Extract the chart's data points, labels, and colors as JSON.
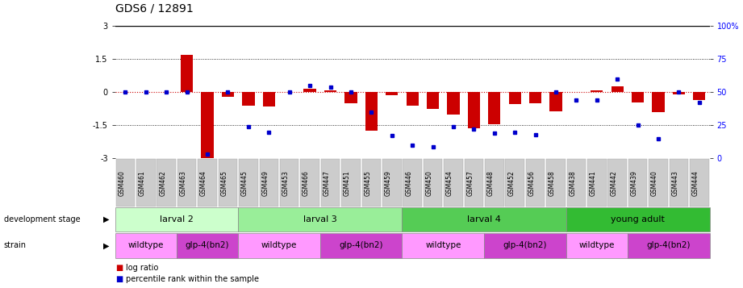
{
  "title": "GDS6 / 12891",
  "samples": [
    "GSM460",
    "GSM461",
    "GSM462",
    "GSM463",
    "GSM464",
    "GSM465",
    "GSM445",
    "GSM449",
    "GSM453",
    "GSM466",
    "GSM447",
    "GSM451",
    "GSM455",
    "GSM459",
    "GSM446",
    "GSM450",
    "GSM454",
    "GSM457",
    "GSM448",
    "GSM452",
    "GSM456",
    "GSM458",
    "GSM438",
    "GSM441",
    "GSM442",
    "GSM439",
    "GSM440",
    "GSM443",
    "GSM444"
  ],
  "log_ratio": [
    0.0,
    0.0,
    0.0,
    1.7,
    -3.0,
    -0.2,
    -0.6,
    -0.65,
    0.0,
    0.15,
    0.1,
    -0.5,
    -1.75,
    -0.15,
    -0.6,
    -0.75,
    -1.0,
    -1.65,
    -1.45,
    -0.55,
    -0.5,
    -0.85,
    0.0,
    0.1,
    0.25,
    -0.45,
    -0.9,
    -0.1,
    -0.35
  ],
  "percentile": [
    50,
    50,
    50,
    50,
    3,
    50,
    24,
    20,
    50,
    55,
    54,
    50,
    35,
    17,
    10,
    9,
    24,
    22,
    19,
    20,
    18,
    50,
    44,
    44,
    60,
    25,
    15,
    50,
    42
  ],
  "ylim": [
    -3,
    3
  ],
  "yticks_left": [
    -3,
    -1.5,
    0,
    1.5,
    3
  ],
  "yticks_right_pct": [
    0,
    25,
    50,
    75,
    100
  ],
  "yticks_right_labels": [
    "0",
    "25",
    "50",
    "75",
    "100%"
  ],
  "hline_zero": 0,
  "dotted_lines": [
    -1.5,
    1.5
  ],
  "dev_stages": [
    {
      "label": "larval 2",
      "start": 0,
      "end": 5,
      "color": "#ccffcc"
    },
    {
      "label": "larval 3",
      "start": 6,
      "end": 13,
      "color": "#99ee99"
    },
    {
      "label": "larval 4",
      "start": 14,
      "end": 21,
      "color": "#55cc55"
    },
    {
      "label": "young adult",
      "start": 22,
      "end": 28,
      "color": "#33bb33"
    }
  ],
  "strains": [
    {
      "label": "wildtype",
      "start": 0,
      "end": 2,
      "color": "#ff99ff"
    },
    {
      "label": "glp-4(bn2)",
      "start": 3,
      "end": 5,
      "color": "#cc44cc"
    },
    {
      "label": "wildtype",
      "start": 6,
      "end": 9,
      "color": "#ff99ff"
    },
    {
      "label": "glp-4(bn2)",
      "start": 10,
      "end": 13,
      "color": "#cc44cc"
    },
    {
      "label": "wildtype",
      "start": 14,
      "end": 17,
      "color": "#ff99ff"
    },
    {
      "label": "glp-4(bn2)",
      "start": 18,
      "end": 21,
      "color": "#cc44cc"
    },
    {
      "label": "wildtype",
      "start": 22,
      "end": 24,
      "color": "#ff99ff"
    },
    {
      "label": "glp-4(bn2)",
      "start": 25,
      "end": 28,
      "color": "#cc44cc"
    }
  ],
  "bar_color": "#cc0000",
  "dot_color": "#0000cc",
  "zero_line_color": "#cc0000",
  "bg_color": "#ffffff",
  "title_fontsize": 10,
  "tick_fontsize": 7,
  "label_fontsize": 8,
  "xtick_bg_color": "#cccccc"
}
